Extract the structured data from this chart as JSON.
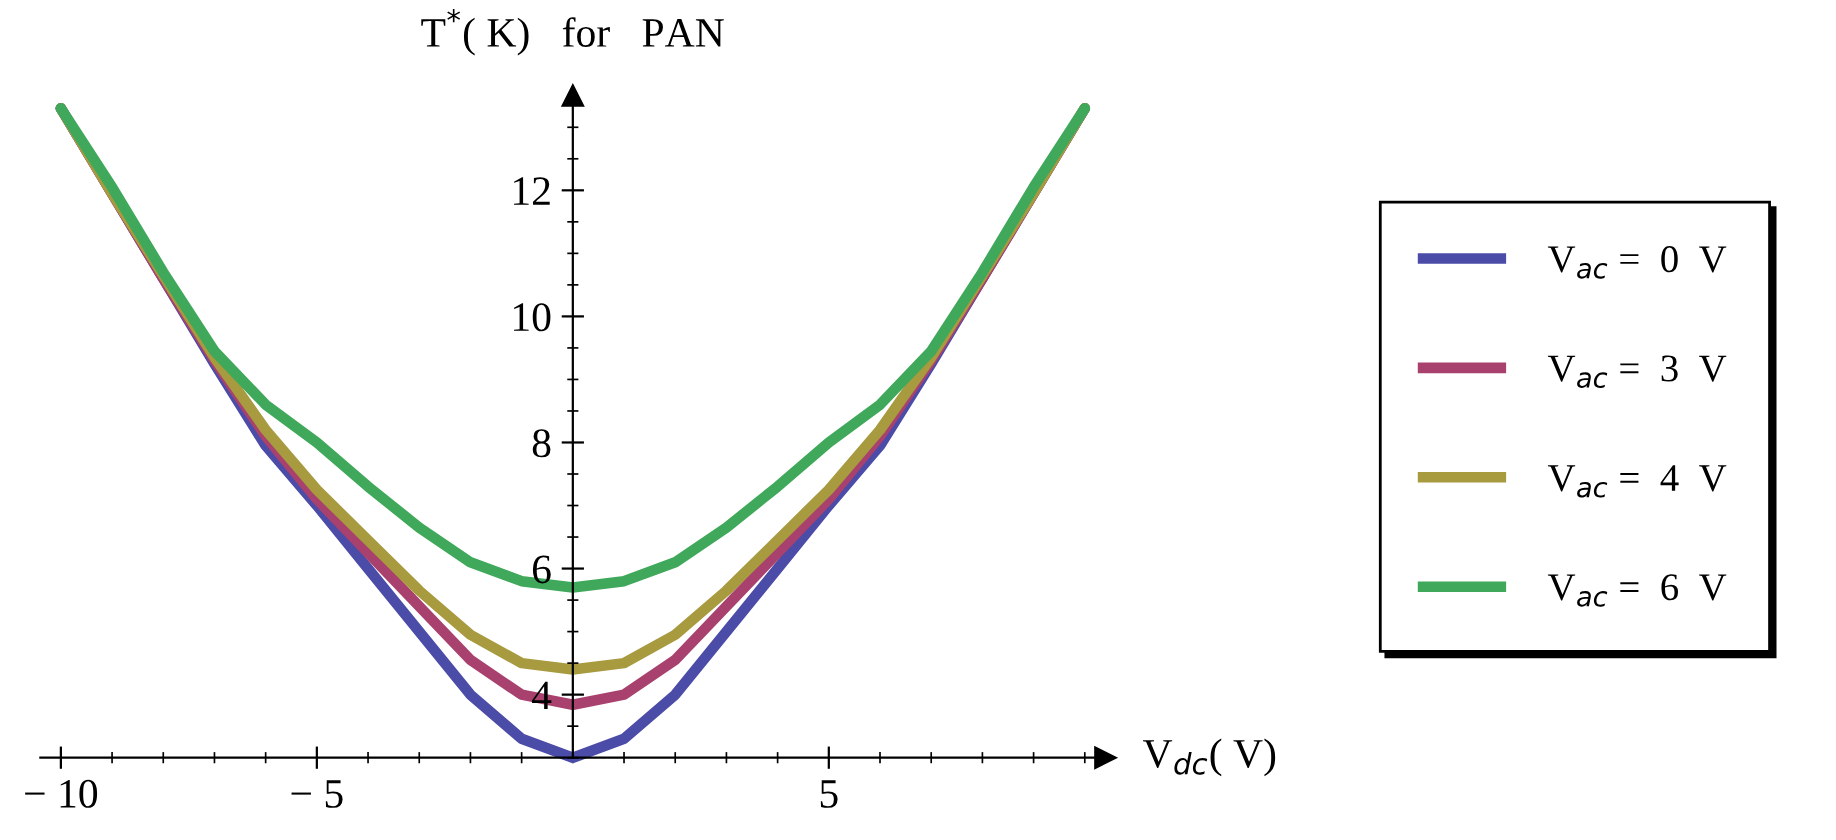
{
  "chart_data": {
    "type": "line",
    "ylabel": "T$^{*}$( K)   for   PAN",
    "xlabel": "V$_{dc}$( V)",
    "x": [
      -10,
      -9,
      -8,
      -7,
      -6,
      -5,
      -4,
      -3,
      -2,
      -1,
      0,
      1,
      2,
      3,
      4,
      5,
      6,
      7,
      8,
      9,
      10
    ],
    "series": [
      {
        "name": "V$_{ac}$ =  0  V",
        "color": "#4b4ba8",
        "values": [
          13.3,
          11.95,
          10.6,
          9.25,
          7.95,
          7.0,
          6.0,
          5.0,
          4.0,
          3.3,
          3.0,
          3.3,
          4.0,
          5.0,
          6.0,
          7.0,
          7.95,
          9.25,
          10.6,
          11.95,
          13.3
        ]
      },
      {
        "name": "V$_{ac}$ =  3  V",
        "color": "#a8416e",
        "values": [
          13.3,
          11.95,
          10.6,
          9.3,
          8.1,
          7.1,
          6.25,
          5.4,
          4.55,
          4.0,
          3.84,
          4.0,
          4.55,
          5.4,
          6.25,
          7.1,
          8.1,
          9.3,
          10.6,
          11.95,
          13.3
        ]
      },
      {
        "name": "V$_{ac}$ =  4  V",
        "color": "#a89a3f",
        "values": [
          13.3,
          11.95,
          10.65,
          9.35,
          8.2,
          7.25,
          6.45,
          5.65,
          4.95,
          4.5,
          4.4,
          4.5,
          4.95,
          5.65,
          6.45,
          7.25,
          8.2,
          9.35,
          10.65,
          11.95,
          13.3
        ]
      },
      {
        "name": "V$_{ac}$ =  6  V",
        "color": "#3fa85a",
        "values": [
          13.3,
          12.05,
          10.7,
          9.45,
          8.6,
          8.0,
          7.3,
          6.65,
          6.1,
          5.8,
          5.7,
          5.8,
          6.1,
          6.65,
          7.3,
          8.0,
          8.6,
          9.45,
          10.7,
          12.05,
          13.3
        ]
      }
    ],
    "xlim": [
      -10.4,
      10.4
    ],
    "ylim": [
      3,
      13.5
    ],
    "xticks": [
      {
        "value": -10,
        "label": "− 10"
      },
      {
        "value": -5,
        "label": "− 5"
      },
      5
    ],
    "yticks": [
      4,
      6,
      8,
      10,
      12
    ],
    "legend": "right",
    "grid": false
  }
}
